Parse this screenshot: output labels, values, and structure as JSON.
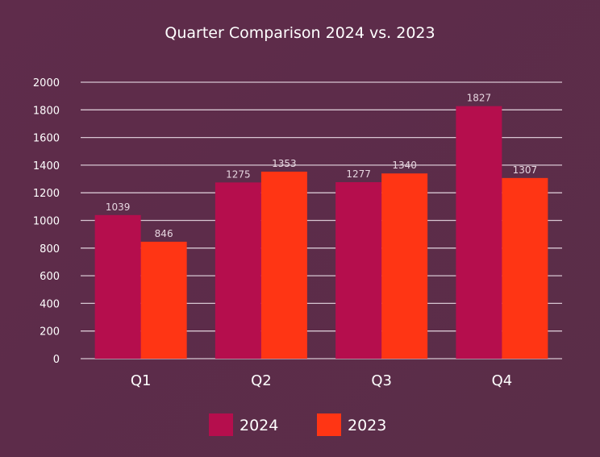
{
  "chart_data": {
    "type": "bar",
    "title": "Quarter Comparison 2024 vs. 2023",
    "categories": [
      "Q1",
      "Q2",
      "Q3",
      "Q4"
    ],
    "series": [
      {
        "name": "2024",
        "values": [
          1039,
          1275,
          1277,
          1827
        ],
        "color": "#b50e4d"
      },
      {
        "name": "2023",
        "values": [
          846,
          1353,
          1340,
          1307
        ],
        "color": "#ff3514"
      }
    ],
    "ylim": [
      0,
      2000
    ],
    "yticks": [
      0,
      200,
      400,
      600,
      800,
      1000,
      1200,
      1400,
      1600,
      1800,
      2000
    ],
    "grid": true,
    "legend": "bottom",
    "data_labels": true,
    "background": "#5e2d4a"
  }
}
